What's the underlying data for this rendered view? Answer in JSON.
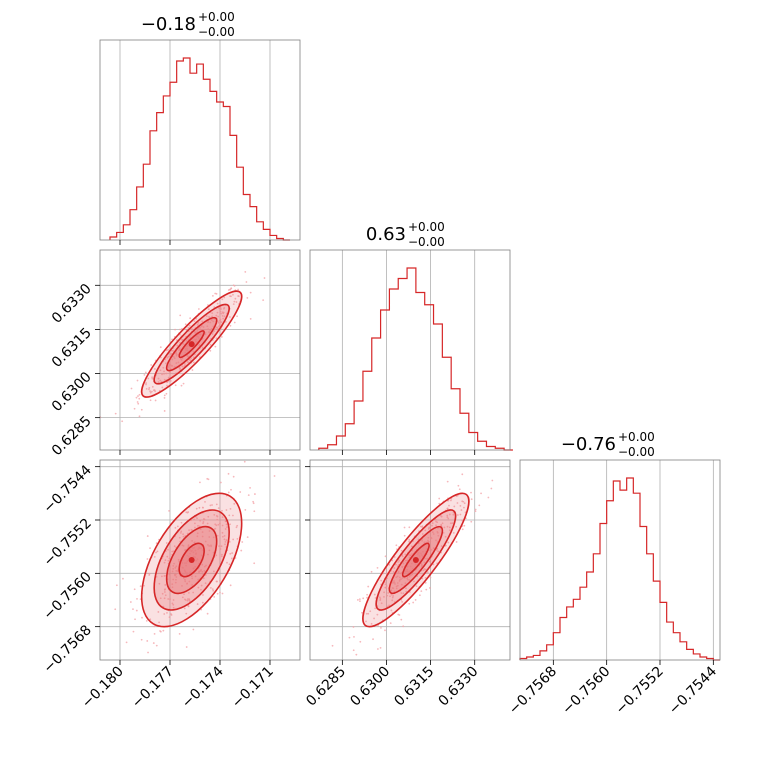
{
  "colors": {
    "main": "#d62728",
    "fill": "#e8767a",
    "scatter": "#f4a6ab",
    "grid": "#b0b0b0",
    "axis": "#7f7f7f"
  },
  "params": [
    {
      "title": {
        "median": "−0.18",
        "upper": "+0.00",
        "lower": "−0.00"
      },
      "ticks": [
        {
          "value": -0.18,
          "label": "−0.180"
        },
        {
          "value": -0.177,
          "label": "−0.177"
        },
        {
          "value": -0.174,
          "label": "−0.174"
        },
        {
          "value": -0.171,
          "label": "−0.171"
        }
      ]
    },
    {
      "title": {
        "median": "0.63",
        "upper": "+0.00",
        "lower": "−0.00"
      },
      "ticks": [
        {
          "value": 0.6285,
          "label": "0.6285"
        },
        {
          "value": 0.63,
          "label": "0.6300"
        },
        {
          "value": 0.6315,
          "label": "0.6315"
        },
        {
          "value": 0.633,
          "label": "0.6330"
        }
      ]
    },
    {
      "title": {
        "median": "−0.76",
        "upper": "+0.00",
        "lower": "−0.00"
      },
      "ticks": [
        {
          "value": -0.7568,
          "label": "−0.7568"
        },
        {
          "value": -0.756,
          "label": "−0.7560"
        },
        {
          "value": -0.7552,
          "label": "−0.7552"
        },
        {
          "value": -0.7544,
          "label": "−0.7544"
        }
      ]
    }
  ],
  "chart_data": {
    "type": "corner",
    "grid": true,
    "ranges": [
      [
        -0.1812,
        -0.1692
      ],
      [
        0.6274,
        0.6342
      ],
      [
        -0.7573,
        -0.7543
      ]
    ],
    "histograms": [
      {
        "centers": [
          -0.1804,
          -0.18,
          -0.1796,
          -0.1792,
          -0.1788,
          -0.1784,
          -0.178,
          -0.1776,
          -0.1772,
          -0.1768,
          -0.1764,
          -0.176,
          -0.1756,
          -0.1752,
          -0.1748,
          -0.1744,
          -0.174,
          -0.1736,
          -0.1732,
          -0.1728,
          -0.1724,
          -0.172,
          -0.1716,
          -0.1712,
          -0.1708,
          -0.1704,
          -0.17
        ],
        "counts": [
          2,
          5,
          10,
          20,
          35,
          50,
          72,
          84,
          95,
          104,
          118,
          120,
          110,
          116,
          106,
          98,
          91,
          88,
          69,
          48,
          30,
          22,
          12,
          7,
          3,
          1,
          0
        ]
      },
      {
        "centers": [
          0.62785,
          0.62815,
          0.62845,
          0.62875,
          0.62905,
          0.62935,
          0.62965,
          0.62995,
          0.63025,
          0.63055,
          0.63085,
          0.63115,
          0.63145,
          0.63175,
          0.63205,
          0.63235,
          0.63265,
          0.63295,
          0.63325,
          0.63355,
          0.63385,
          0.63415
        ],
        "counts": [
          1,
          3,
          8,
          15,
          28,
          45,
          64,
          80,
          92,
          98,
          104,
          90,
          83,
          72,
          53,
          35,
          21,
          10,
          5,
          2,
          1,
          0
        ]
      },
      {
        "centers": [
          -0.75725,
          -0.75715,
          -0.75705,
          -0.75695,
          -0.75685,
          -0.75675,
          -0.75665,
          -0.75655,
          -0.75645,
          -0.75635,
          -0.75625,
          -0.75615,
          -0.75605,
          -0.75595,
          -0.75585,
          -0.75575,
          -0.75565,
          -0.75555,
          -0.75545,
          -0.75535,
          -0.75525,
          -0.75515,
          -0.75505,
          -0.75495,
          -0.75485,
          -0.75475,
          -0.75465,
          -0.75455,
          -0.75445,
          -0.75435
        ],
        "counts": [
          1,
          2,
          3,
          6,
          10,
          18,
          28,
          35,
          40,
          48,
          58,
          70,
          90,
          105,
          118,
          112,
          120,
          110,
          88,
          70,
          52,
          38,
          25,
          18,
          12,
          7,
          4,
          2,
          1,
          0
        ]
      }
    ],
    "pairs": [
      {
        "x": 0,
        "y": 1,
        "mean": [
          -0.1757,
          0.631
        ],
        "sd": [
          0.0015,
          0.0009
        ],
        "rho": 0.9
      },
      {
        "x": 0,
        "y": 2,
        "mean": [
          -0.1757,
          -0.7558
        ],
        "sd": [
          0.0015,
          0.0005
        ],
        "rho": 0.55
      },
      {
        "x": 1,
        "y": 2,
        "mean": [
          0.631,
          -0.7558
        ],
        "sd": [
          0.0009,
          0.0005
        ],
        "rho": 0.88
      }
    ],
    "contour_levels": [
      0.5,
      1.0,
      1.5,
      2.0
    ]
  }
}
